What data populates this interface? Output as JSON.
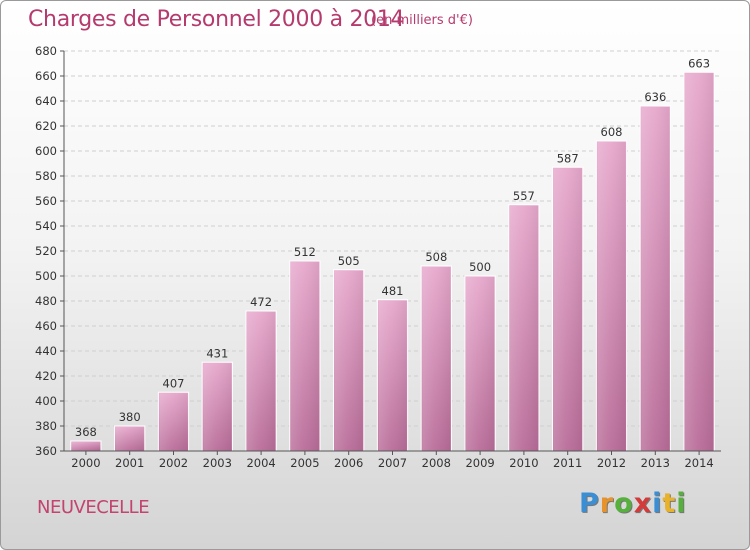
{
  "header": {
    "title": "Charges de Personnel 2000 à 2014",
    "unit": "(en milliers d'€)"
  },
  "footer": {
    "city": "NEUVECELLE",
    "logo_letters": [
      "P",
      "r",
      "o",
      "x",
      "i",
      "t",
      "i"
    ]
  },
  "colors": {
    "bar_top": "#e7a9cd",
    "bar_bottom": "#b96d99",
    "title": "#b53a6e",
    "logo": [
      "#3a8fd4",
      "#e8922a",
      "#55b03c",
      "#d33a3a",
      "#3a8fd4",
      "#e8b22a",
      "#55b03c"
    ]
  },
  "chart_data": {
    "type": "bar",
    "title": "Charges de Personnel 2000 à 2014",
    "subtitle": "(en milliers d'€)",
    "categories": [
      "2000",
      "2001",
      "2002",
      "2003",
      "2004",
      "2005",
      "2006",
      "2007",
      "2008",
      "2009",
      "2010",
      "2011",
      "2012",
      "2013",
      "2014"
    ],
    "values": [
      368,
      380,
      407,
      431,
      472,
      512,
      505,
      481,
      508,
      500,
      557,
      587,
      608,
      636,
      663
    ],
    "ylim": [
      360,
      680
    ],
    "yticks": [
      360,
      380,
      400,
      420,
      440,
      460,
      480,
      500,
      520,
      540,
      560,
      580,
      600,
      620,
      640,
      660,
      680
    ],
    "grid": true,
    "data_labels": true
  }
}
